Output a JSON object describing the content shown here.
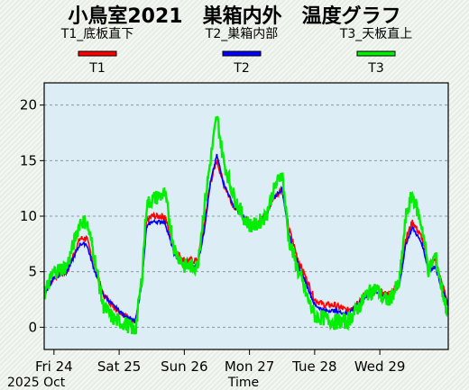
{
  "chart_data": {
    "type": "line",
    "title": "小鳥室2021　巣箱内外　温度グラフ",
    "xlabel": "Time",
    "ylabel": "",
    "ylim": [
      -2,
      22
    ],
    "yticks": [
      0,
      5,
      10,
      15,
      20
    ],
    "x_start_label": "2025 Oct",
    "x_ticks": [
      {
        "day": 0,
        "label": "Fri 24"
      },
      {
        "day": 1,
        "label": "Sat 25"
      },
      {
        "day": 2,
        "label": "Sun 26"
      },
      {
        "day": 3,
        "label": "Mon 27"
      },
      {
        "day": 4,
        "label": "Tue 28"
      },
      {
        "day": 5,
        "label": "Wed 29"
      }
    ],
    "x_range_days": [
      -0.15,
      6.05
    ],
    "grid": true,
    "legend_placement": "top",
    "series": [
      {
        "name": "T1_底板直下",
        "short": "T1",
        "color": "#ff0000",
        "x": [
          -0.15,
          0.0,
          0.2,
          0.4,
          0.5,
          0.6,
          0.75,
          0.9,
          1.0,
          1.1,
          1.25,
          1.35,
          1.42,
          1.5,
          1.7,
          1.85,
          2.0,
          2.2,
          2.3,
          2.4,
          2.5,
          2.6,
          2.75,
          2.9,
          3.0,
          3.1,
          3.25,
          3.35,
          3.5,
          3.6,
          3.75,
          3.9,
          4.0,
          4.15,
          4.3,
          4.5,
          4.7,
          4.8,
          4.95,
          5.05,
          5.15,
          5.3,
          5.4,
          5.5,
          5.65,
          5.75,
          5.85,
          5.95,
          6.05
        ],
        "y": [
          3,
          4.5,
          5,
          8,
          8,
          6,
          3,
          2,
          1.5,
          1,
          0.5,
          4,
          9.5,
          10,
          10,
          7,
          6,
          6,
          9,
          13,
          15,
          13,
          11,
          10,
          9.5,
          9.5,
          10,
          11.5,
          12.5,
          9,
          6,
          4,
          2.5,
          2,
          2,
          1.5,
          2.5,
          3,
          3.5,
          3,
          3,
          4,
          8,
          9.5,
          8,
          5.5,
          6,
          4,
          2
        ]
      },
      {
        "name": "T2_巣箱内部",
        "short": "T2",
        "color": "#0000ff",
        "x": [
          -0.15,
          0.0,
          0.2,
          0.4,
          0.5,
          0.6,
          0.75,
          0.9,
          1.0,
          1.1,
          1.25,
          1.35,
          1.42,
          1.5,
          1.7,
          1.85,
          2.0,
          2.2,
          2.3,
          2.4,
          2.5,
          2.6,
          2.75,
          2.9,
          3.0,
          3.1,
          3.25,
          3.35,
          3.5,
          3.6,
          3.75,
          3.9,
          4.0,
          4.15,
          4.3,
          4.5,
          4.7,
          4.8,
          4.95,
          5.05,
          5.15,
          5.3,
          5.4,
          5.5,
          5.65,
          5.75,
          5.85,
          5.95,
          6.05
        ],
        "y": [
          3,
          4.5,
          5,
          7.5,
          7.5,
          5.5,
          3,
          2,
          1.5,
          1,
          0.5,
          4,
          9,
          9.5,
          9.5,
          6.5,
          5.5,
          5.5,
          8.5,
          13,
          15.5,
          13,
          11,
          10,
          9.3,
          9.3,
          9.8,
          11.5,
          12.5,
          8.5,
          5.5,
          3.5,
          2,
          1.5,
          1.5,
          1.2,
          2.2,
          2.8,
          3.2,
          2.8,
          2.8,
          3.8,
          7.5,
          9,
          7.5,
          5,
          5.5,
          3.5,
          2
        ]
      },
      {
        "name": "T3_天板直上",
        "short": "T3",
        "color": "#00ee00",
        "x": [
          -0.15,
          0.0,
          0.2,
          0.4,
          0.5,
          0.6,
          0.75,
          0.9,
          1.0,
          1.1,
          1.25,
          1.35,
          1.42,
          1.5,
          1.7,
          1.85,
          2.0,
          2.2,
          2.3,
          2.4,
          2.5,
          2.6,
          2.75,
          2.9,
          3.0,
          3.1,
          3.25,
          3.35,
          3.5,
          3.6,
          3.75,
          3.9,
          4.0,
          4.15,
          4.3,
          4.5,
          4.7,
          4.8,
          4.95,
          5.05,
          5.15,
          5.3,
          5.4,
          5.5,
          5.65,
          5.75,
          5.85,
          5.95,
          6.05
        ],
        "y": [
          3,
          5,
          5.5,
          9.5,
          9.5,
          7,
          2,
          0.8,
          0.5,
          0.3,
          -0.3,
          4.5,
          11,
          11.5,
          12,
          7,
          5.5,
          5.5,
          10.5,
          15,
          19,
          15,
          12,
          10,
          9.2,
          9.2,
          10,
          12,
          14,
          8,
          5,
          2.5,
          1,
          0.8,
          0.5,
          0.5,
          2,
          3,
          3.5,
          2.5,
          2.5,
          4,
          10,
          12,
          9,
          5,
          6.5,
          3.5,
          1
        ]
      }
    ]
  }
}
